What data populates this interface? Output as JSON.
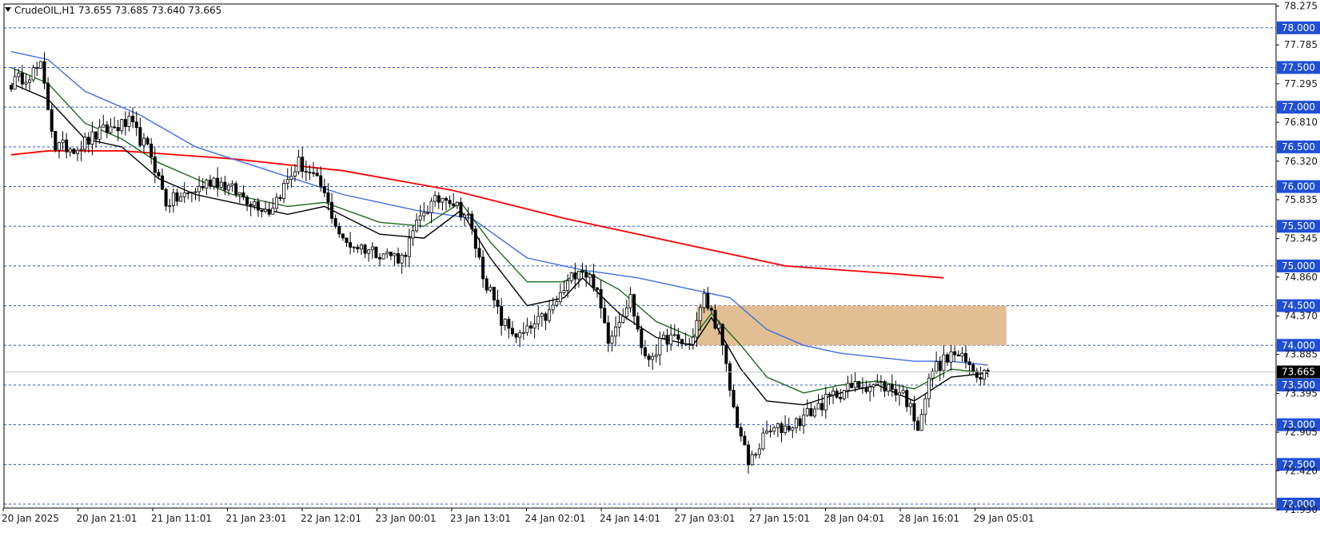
{
  "header": {
    "symbol_line": "CrudeOIL,H1  73.655 73.685 73.640 73.665",
    "menu_icon": "triangle-down-icon"
  },
  "chart_data": {
    "type": "candlestick",
    "symbol": "CrudeOIL",
    "timeframe": "H1",
    "ohlc_current": {
      "open": 73.655,
      "high": 73.685,
      "low": 73.64,
      "close": 73.665
    },
    "ylim": [
      71.95,
      78.3
    ],
    "price_ticks": [
      "78.275",
      "77.785",
      "77.295",
      "76.810",
      "76.320",
      "75.835",
      "75.345",
      "74.860",
      "74.370",
      "73.885",
      "73.395",
      "72.905",
      "72.420",
      "71.930"
    ],
    "level_labels": [
      "78.000",
      "77.500",
      "77.000",
      "76.500",
      "76.000",
      "75.500",
      "75.000",
      "74.500",
      "74.000",
      "73.500",
      "73.000",
      "72.500",
      "72.000"
    ],
    "current_price_label": "73.665",
    "time_labels": [
      "20 Jan 2025",
      "20 Jan 21:01",
      "21 Jan 11:01",
      "21 Jan 23:01",
      "22 Jan 12:01",
      "23 Jan 00:01",
      "23 Jan 13:01",
      "24 Jan 02:01",
      "24 Jan 14:01",
      "27 Jan 03:01",
      "27 Jan 15:01",
      "28 Jan 04:01",
      "28 Jan 16:01",
      "29 Jan 05:01"
    ],
    "zone": {
      "top": 74.5,
      "bottom": 74.0,
      "start_bar": 186,
      "end_bar": 270,
      "color": "#deb887"
    },
    "grid": true,
    "colors": {
      "ma_red": "#ff0000",
      "ma_blue": "#3d6ee6",
      "ma_green": "#1a6b1a",
      "ma_black": "#000000",
      "level_box": "#1f4fd6",
      "current_box": "#000000",
      "grid_line": "#2b4fe0"
    },
    "anchors": [
      [
        0,
        77.3
      ],
      [
        8,
        77.5
      ],
      [
        12,
        76.5
      ],
      [
        18,
        76.5
      ],
      [
        25,
        76.7
      ],
      [
        32,
        76.8
      ],
      [
        38,
        76.4
      ],
      [
        42,
        75.8
      ],
      [
        48,
        75.9
      ],
      [
        55,
        76.1
      ],
      [
        62,
        75.9
      ],
      [
        70,
        75.7
      ],
      [
        78,
        76.3
      ],
      [
        84,
        76.0
      ],
      [
        90,
        75.3
      ],
      [
        98,
        75.2
      ],
      [
        106,
        75.1
      ],
      [
        112,
        75.7
      ],
      [
        118,
        75.9
      ],
      [
        124,
        75.6
      ],
      [
        128,
        74.9
      ],
      [
        133,
        74.3
      ],
      [
        138,
        74.1
      ],
      [
        146,
        74.4
      ],
      [
        150,
        74.7
      ],
      [
        154,
        75.0
      ],
      [
        158,
        74.8
      ],
      [
        162,
        74.1
      ],
      [
        168,
        74.6
      ],
      [
        172,
        73.8
      ],
      [
        178,
        74.1
      ],
      [
        184,
        74.0
      ],
      [
        188,
        74.6
      ],
      [
        192,
        74.2
      ],
      [
        196,
        73.2
      ],
      [
        200,
        72.5
      ],
      [
        205,
        72.9
      ],
      [
        212,
        73.0
      ],
      [
        218,
        73.2
      ],
      [
        224,
        73.4
      ],
      [
        230,
        73.5
      ],
      [
        236,
        73.5
      ],
      [
        242,
        73.4
      ],
      [
        246,
        73.0
      ],
      [
        250,
        73.7
      ],
      [
        256,
        73.9
      ],
      [
        262,
        73.65
      ],
      [
        265,
        73.665
      ]
    ],
    "ma_red": [
      [
        0,
        76.4
      ],
      [
        10,
        76.45
      ],
      [
        30,
        76.45
      ],
      [
        60,
        76.35
      ],
      [
        90,
        76.2
      ],
      [
        120,
        75.95
      ],
      [
        150,
        75.6
      ],
      [
        180,
        75.3
      ],
      [
        210,
        75.0
      ],
      [
        240,
        74.9
      ],
      [
        253,
        74.85
      ]
    ],
    "ma_blue": [
      [
        0,
        77.7
      ],
      [
        10,
        77.6
      ],
      [
        20,
        77.2
      ],
      [
        35,
        76.9
      ],
      [
        50,
        76.5
      ],
      [
        70,
        76.2
      ],
      [
        90,
        75.9
      ],
      [
        110,
        75.7
      ],
      [
        125,
        75.6
      ],
      [
        140,
        75.1
      ],
      [
        155,
        74.95
      ],
      [
        170,
        74.85
      ],
      [
        185,
        74.7
      ],
      [
        195,
        74.6
      ],
      [
        205,
        74.2
      ],
      [
        215,
        74.0
      ],
      [
        225,
        73.9
      ],
      [
        235,
        73.85
      ],
      [
        245,
        73.8
      ],
      [
        255,
        73.8
      ],
      [
        265,
        73.75
      ]
    ],
    "ma_green": [
      [
        0,
        77.5
      ],
      [
        10,
        77.3
      ],
      [
        20,
        76.8
      ],
      [
        30,
        76.6
      ],
      [
        40,
        76.3
      ],
      [
        50,
        76.1
      ],
      [
        60,
        75.9
      ],
      [
        75,
        75.75
      ],
      [
        85,
        75.8
      ],
      [
        100,
        75.55
      ],
      [
        112,
        75.5
      ],
      [
        122,
        75.8
      ],
      [
        130,
        75.3
      ],
      [
        140,
        74.8
      ],
      [
        150,
        74.8
      ],
      [
        155,
        74.95
      ],
      [
        165,
        74.7
      ],
      [
        175,
        74.3
      ],
      [
        185,
        74.1
      ],
      [
        190,
        74.4
      ],
      [
        198,
        74.0
      ],
      [
        205,
        73.6
      ],
      [
        215,
        73.4
      ],
      [
        225,
        73.5
      ],
      [
        235,
        73.55
      ],
      [
        245,
        73.45
      ],
      [
        255,
        73.7
      ],
      [
        265,
        73.65
      ]
    ],
    "ma_black": [
      [
        0,
        77.3
      ],
      [
        10,
        77.1
      ],
      [
        20,
        76.6
      ],
      [
        30,
        76.5
      ],
      [
        40,
        76.1
      ],
      [
        50,
        75.9
      ],
      [
        60,
        75.8
      ],
      [
        75,
        75.65
      ],
      [
        85,
        75.75
      ],
      [
        100,
        75.4
      ],
      [
        112,
        75.35
      ],
      [
        122,
        75.7
      ],
      [
        130,
        75.1
      ],
      [
        140,
        74.5
      ],
      [
        150,
        74.6
      ],
      [
        155,
        74.85
      ],
      [
        165,
        74.4
      ],
      [
        175,
        74.1
      ],
      [
        185,
        74.0
      ],
      [
        190,
        74.35
      ],
      [
        198,
        73.7
      ],
      [
        205,
        73.3
      ],
      [
        215,
        73.25
      ],
      [
        225,
        73.4
      ],
      [
        235,
        73.5
      ],
      [
        245,
        73.3
      ],
      [
        255,
        73.6
      ],
      [
        265,
        73.65
      ]
    ]
  }
}
